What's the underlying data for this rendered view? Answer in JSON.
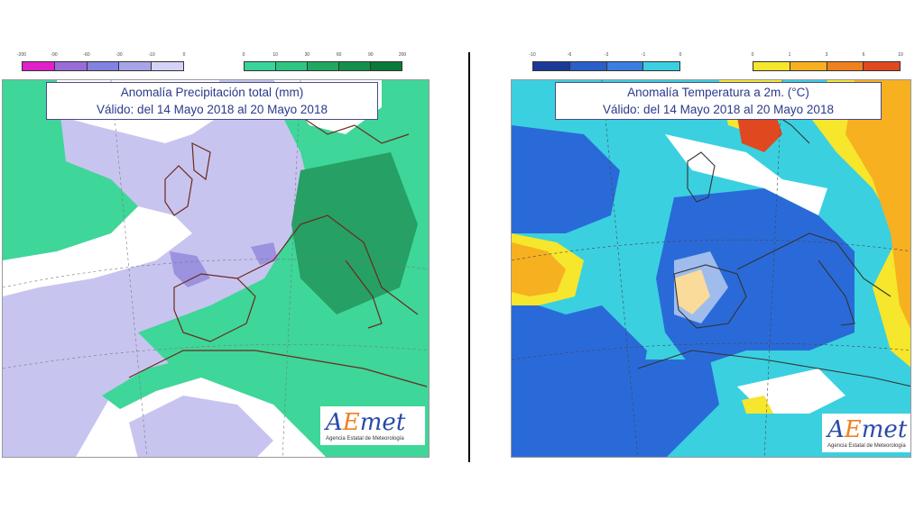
{
  "left": {
    "title_line1": "Anomalía Precipitación total (mm)",
    "title_line2": "Válido: del 14 Mayo 2018 al 20 Mayo 2018",
    "legend_neg": {
      "ticks": [
        "-200",
        "-90",
        "-60",
        "-30",
        "-10",
        "0"
      ],
      "colors": [
        "#e020c8",
        "#9a6cd8",
        "#8282e0",
        "#a8a4e8",
        "#d4d2f6"
      ]
    },
    "legend_pos": {
      "ticks": [
        "0",
        "10",
        "30",
        "60",
        "90",
        "200"
      ],
      "colors": [
        "#38d49a",
        "#2cc680",
        "#20a860",
        "#14904a",
        "#0a7a38"
      ]
    },
    "colors": {
      "ocean_lavender": "#c8c4f0",
      "green": "#3ed699",
      "white": "#ffffff",
      "purple": "#9b92e0",
      "dark_green": "#26a065"
    }
  },
  "right": {
    "title_line1": "Anomalía Temperatura a 2m. (°C)",
    "title_line2": "Válido: del 14 Mayo 2018 al 20 Mayo 2018",
    "legend_neg": {
      "ticks": [
        "-10",
        "-6",
        "-3",
        "-1",
        "0"
      ],
      "colors": [
        "#1a3a9a",
        "#2a5ec8",
        "#3a7ee0",
        "#3ad0e0"
      ]
    },
    "legend_pos": {
      "ticks": [
        "0",
        "1",
        "3",
        "6",
        "10"
      ],
      "colors": [
        "#f6e62c",
        "#f6b020",
        "#f08020",
        "#e04820"
      ]
    },
    "colors": {
      "blue": "#2a6ad8",
      "cyan": "#3ad0e0",
      "yellow": "#f6e62c",
      "orange": "#f6b020",
      "white": "#ffffff",
      "red": "#e04820"
    }
  },
  "logo": {
    "wordmark": "AEmet",
    "subtitle": "Agencia Estatal de Meteorología",
    "colors": {
      "blue": "#2a4aa8",
      "orange": "#f08020"
    }
  }
}
